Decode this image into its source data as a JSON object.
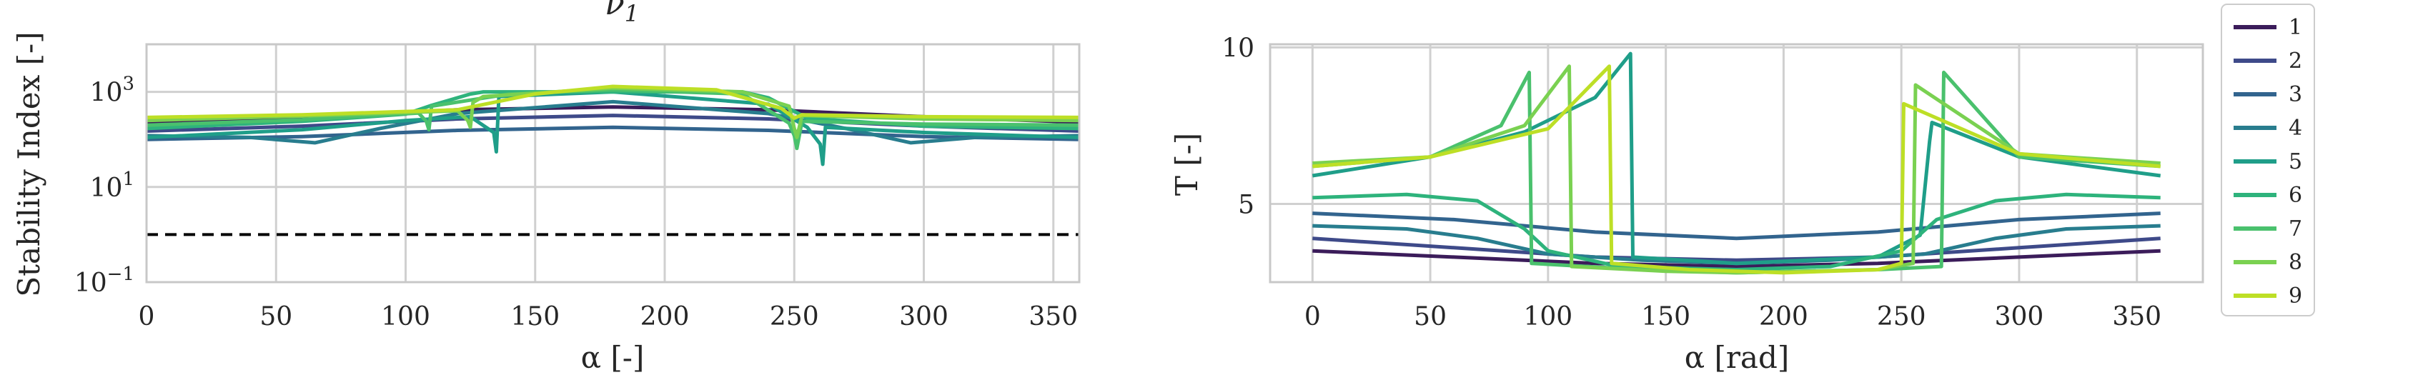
{
  "colors": {
    "palette": [
      "#440154",
      "#46327e",
      "#365c8d",
      "#277f8e",
      "#1fa187",
      "#4ac16d",
      "#a0da39",
      "#c7e020",
      "#fde725"
    ],
    "series_palette": [
      "#3b1c5a",
      "#3e4a89",
      "#32648e",
      "#287d8e",
      "#1f9e89",
      "#2eb37c",
      "#4ac16d",
      "#7ad151",
      "#bddf26"
    ],
    "grid": "#d0d0d0",
    "spine": "#c8c8c8",
    "reference": "#000000"
  },
  "legend": {
    "placement": "right-outside",
    "entries": [
      "1",
      "2",
      "3",
      "4",
      "5",
      "6",
      "7",
      "8",
      "9"
    ]
  },
  "chart_data": [
    {
      "type": "line",
      "title": "ν1",
      "title_main": "ν",
      "title_sub": "1",
      "xlabel": "α [-]",
      "ylabel": "Stability Index [-]",
      "y_scale": "log",
      "xlim": [
        0,
        360
      ],
      "ylim": [
        0.1,
        10000
      ],
      "xticks": [
        0,
        50,
        100,
        150,
        200,
        250,
        300,
        350
      ],
      "xtick_labels": [
        "0",
        "50",
        "100",
        "150",
        "200",
        "250",
        "300",
        "350"
      ],
      "yticks": [
        0.1,
        10,
        1000
      ],
      "ytick_labels": [
        {
          "base": "10",
          "exp": "−1"
        },
        {
          "base": "10",
          "exp": "1"
        },
        {
          "base": "10",
          "exp": "3"
        }
      ],
      "grid": true,
      "reference_line": {
        "y": 1,
        "style": "dashed"
      },
      "series": [
        {
          "x": [
            0,
            60,
            120,
            180,
            240,
            300,
            360
          ],
          "values": [
            230,
            300,
            420,
            480,
            420,
            300,
            230
          ]
        },
        {
          "x": [
            0,
            60,
            120,
            180,
            240,
            300,
            360
          ],
          "values": [
            150,
            190,
            270,
            320,
            270,
            190,
            150
          ]
        },
        {
          "x": [
            0,
            60,
            120,
            180,
            240,
            300,
            360
          ],
          "values": [
            100,
            115,
            155,
            180,
            155,
            115,
            100
          ]
        },
        {
          "x": [
            0,
            40,
            65,
            90,
            120,
            180,
            240,
            270,
            295,
            320,
            360
          ],
          "values": [
            120,
            110,
            85,
            170,
            350,
            620,
            350,
            170,
            85,
            110,
            120
          ]
        },
        {
          "x": [
            0,
            60,
            100,
            125,
            134,
            135,
            136,
            180,
            240,
            255,
            260,
            261,
            262,
            300,
            360
          ],
          "values": [
            110,
            160,
            250,
            300,
            140,
            55,
            800,
            1000,
            550,
            180,
            80,
            30,
            180,
            140,
            110
          ]
        },
        {
          "x": [
            0,
            60,
            100,
            110,
            125,
            130,
            180,
            230,
            240,
            255,
            300,
            360
          ],
          "values": [
            170,
            240,
            340,
            520,
            900,
            1000,
            1000,
            1000,
            750,
            280,
            190,
            170
          ]
        },
        {
          "x": [
            0,
            60,
            105,
            108,
            109,
            110,
            140,
            180,
            230,
            248,
            250,
            251,
            253,
            300,
            360
          ],
          "values": [
            200,
            260,
            360,
            240,
            160,
            500,
            900,
            1100,
            900,
            220,
            120,
            65,
            240,
            210,
            200
          ]
        },
        {
          "x": [
            0,
            60,
            120,
            124,
            125,
            126,
            130,
            180,
            230,
            248,
            250,
            251,
            253,
            300,
            360
          ],
          "values": [
            250,
            310,
            400,
            250,
            180,
            600,
            800,
            1200,
            1000,
            500,
            170,
            110,
            320,
            270,
            250
          ]
        },
        {
          "x": [
            0,
            60,
            120,
            150,
            180,
            220,
            245,
            250,
            253,
            300,
            360
          ],
          "values": [
            290,
            330,
            420,
            900,
            1300,
            1100,
            450,
            280,
            330,
            300,
            290
          ]
        }
      ]
    },
    {
      "type": "line",
      "title": "",
      "xlabel": "α [rad]",
      "ylabel": "T [-]",
      "xlim": [
        -18,
        378
      ],
      "ylim": [
        2.5,
        10.1
      ],
      "xticks": [
        0,
        50,
        100,
        150,
        200,
        250,
        300,
        350
      ],
      "xtick_labels": [
        "0",
        "50",
        "100",
        "150",
        "200",
        "250",
        "300",
        "350"
      ],
      "yticks": [
        5,
        10
      ],
      "ytick_labels": [
        "5",
        "10"
      ],
      "grid": true,
      "series": [
        {
          "name": "1",
          "x": [
            0,
            60,
            120,
            180,
            240,
            300,
            360
          ],
          "values": [
            3.5,
            3.3,
            3.1,
            3.0,
            3.1,
            3.3,
            3.5
          ]
        },
        {
          "name": "2",
          "x": [
            0,
            60,
            120,
            180,
            240,
            300,
            360
          ],
          "values": [
            3.9,
            3.6,
            3.3,
            3.2,
            3.3,
            3.6,
            3.9
          ]
        },
        {
          "name": "3",
          "x": [
            0,
            60,
            120,
            180,
            240,
            300,
            360
          ],
          "values": [
            4.7,
            4.5,
            4.1,
            3.9,
            4.1,
            4.5,
            4.7
          ]
        },
        {
          "name": "4",
          "x": [
            0,
            40,
            70,
            100,
            140,
            180,
            220,
            260,
            290,
            320,
            360
          ],
          "values": [
            4.3,
            4.2,
            3.9,
            3.4,
            3.2,
            3.1,
            3.2,
            3.4,
            3.9,
            4.2,
            4.3
          ]
        },
        {
          "name": "5",
          "x": [
            0,
            50,
            90,
            120,
            135,
            136,
            180,
            240,
            258,
            262,
            263,
            300,
            360
          ],
          "values": [
            5.9,
            6.5,
            7.3,
            8.4,
            9.8,
            3.3,
            3.1,
            3.3,
            4.0,
            7.0,
            7.6,
            6.5,
            5.9
          ]
        },
        {
          "name": "6",
          "x": [
            0,
            40,
            70,
            90,
            100,
            130,
            180,
            220,
            250,
            265,
            290,
            320,
            360
          ],
          "values": [
            5.2,
            5.3,
            5.1,
            4.2,
            3.5,
            3.0,
            2.9,
            3.0,
            3.5,
            4.5,
            5.1,
            5.3,
            5.2
          ]
        },
        {
          "name": "7",
          "x": [
            0,
            50,
            80,
            92,
            93,
            140,
            180,
            240,
            267,
            268,
            300,
            360
          ],
          "values": [
            6.2,
            6.5,
            7.5,
            9.2,
            3.1,
            2.9,
            2.8,
            2.9,
            3.0,
            9.2,
            6.5,
            6.2
          ]
        },
        {
          "name": "8",
          "x": [
            0,
            50,
            90,
            109,
            110,
            150,
            180,
            240,
            255,
            256,
            300,
            360
          ],
          "values": [
            6.3,
            6.5,
            7.5,
            9.4,
            3.0,
            2.85,
            2.8,
            2.9,
            3.1,
            8.8,
            6.6,
            6.3
          ]
        },
        {
          "name": "9",
          "x": [
            0,
            50,
            100,
            126,
            127,
            160,
            200,
            240,
            250,
            251,
            300,
            360
          ],
          "values": [
            6.2,
            6.5,
            7.4,
            9.4,
            3.1,
            2.9,
            2.8,
            2.9,
            3.1,
            8.2,
            6.6,
            6.2
          ]
        }
      ]
    }
  ]
}
